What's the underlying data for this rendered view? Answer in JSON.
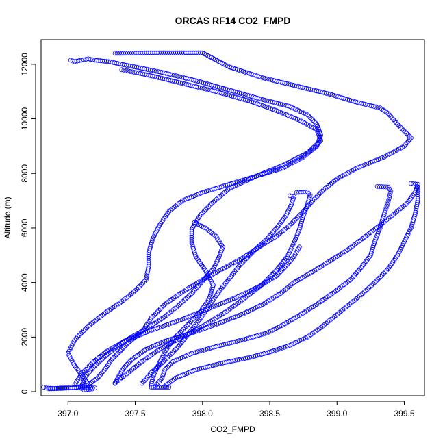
{
  "chart_data": {
    "type": "scatter",
    "title": "ORCAS RF14 CO2_FMPD",
    "xlabel": "CO2_FMPD",
    "ylabel": "Altitude (m)",
    "xlim": [
      396.8,
      399.65
    ],
    "ylim": [
      -150,
      12900
    ],
    "xticks": [
      397.0,
      397.5,
      398.0,
      398.5,
      399.0,
      399.5
    ],
    "xtick_labels": [
      "397.0",
      "397.5",
      "398.0",
      "398.5",
      "399.0",
      "399.5"
    ],
    "yticks": [
      0,
      2000,
      4000,
      6000,
      8000,
      10000,
      12000
    ],
    "ytick_labels": [
      "0",
      "2000",
      "4000",
      "6000",
      "8000",
      "10000",
      "12000"
    ],
    "marker": "open-circle",
    "marker_color": "#0000ff",
    "grid": false,
    "legend": "none",
    "series": [
      {
        "segments": [
          [
            [
              397.35,
              12400
            ],
            [
              397.6,
              12420
            ],
            [
              397.8,
              12420
            ],
            [
              398.0,
              12420
            ],
            [
              398.2,
              11900
            ],
            [
              398.45,
              11500
            ],
            [
              398.7,
              11200
            ],
            [
              398.95,
              10900
            ],
            [
              399.15,
              10600
            ],
            [
              399.32,
              10400
            ],
            [
              399.38,
              10200
            ],
            [
              399.45,
              9800
            ],
            [
              399.55,
              9300
            ],
            [
              399.5,
              9000
            ],
            [
              399.35,
              8600
            ],
            [
              399.15,
              8200
            ],
            [
              399.0,
              7800
            ],
            [
              398.9,
              7400
            ],
            [
              398.82,
              7000
            ],
            [
              398.75,
              6600
            ],
            [
              398.65,
              6100
            ],
            [
              398.55,
              5700
            ],
            [
              398.42,
              5300
            ],
            [
              398.3,
              4900
            ],
            [
              398.15,
              4500
            ],
            [
              398.0,
              4100
            ],
            [
              397.85,
              3650
            ],
            [
              397.72,
              3200
            ],
            [
              397.62,
              2700
            ],
            [
              397.55,
              2200
            ],
            [
              397.45,
              1800
            ],
            [
              397.38,
              1450
            ],
            [
              397.32,
              1150
            ],
            [
              397.28,
              850
            ],
            [
              397.22,
              500
            ],
            [
              397.15,
              250
            ],
            [
              397.05,
              140
            ],
            [
              396.9,
              110
            ],
            [
              396.84,
              130
            ],
            [
              396.82,
              160
            ]
          ],
          [
            [
              397.02,
              12150
            ],
            [
              397.05,
              12100
            ],
            [
              397.1,
              12150
            ],
            [
              397.15,
              12200
            ],
            [
              397.2,
              12150
            ],
            [
              397.3,
              12100
            ],
            [
              397.45,
              11950
            ],
            [
              397.7,
              11700
            ],
            [
              397.95,
              11400
            ],
            [
              398.2,
              11050
            ],
            [
              398.45,
              10700
            ],
            [
              398.65,
              10450
            ],
            [
              398.78,
              10150
            ],
            [
              398.85,
              9800
            ],
            [
              398.88,
              9400
            ],
            [
              398.85,
              9000
            ],
            [
              398.75,
              8600
            ],
            [
              398.6,
              8200
            ],
            [
              398.4,
              7900
            ],
            [
              398.2,
              7600
            ],
            [
              398.0,
              7300
            ],
            [
              397.85,
              7000
            ],
            [
              397.75,
              6600
            ],
            [
              397.68,
              6100
            ],
            [
              397.63,
              5600
            ],
            [
              397.6,
              5100
            ],
            [
              397.6,
              4600
            ],
            [
              397.58,
              4100
            ],
            [
              397.5,
              3700
            ],
            [
              397.4,
              3300
            ],
            [
              397.28,
              2900
            ],
            [
              397.15,
              2400
            ],
            [
              397.05,
              1900
            ],
            [
              397.0,
              1400
            ],
            [
              397.05,
              950
            ],
            [
              397.12,
              500
            ],
            [
              397.15,
              250
            ],
            [
              397.18,
              100
            ],
            [
              397.12,
              60
            ]
          ],
          [
            [
              397.4,
              11800
            ],
            [
              397.6,
              11600
            ],
            [
              397.85,
              11300
            ],
            [
              398.1,
              11000
            ],
            [
              398.35,
              10650
            ],
            [
              398.55,
              10300
            ],
            [
              398.72,
              9950
            ],
            [
              398.85,
              9600
            ],
            [
              398.88,
              9200
            ],
            [
              398.78,
              8750
            ],
            [
              398.6,
              8300
            ],
            [
              398.4,
              7900
            ],
            [
              398.2,
              7450
            ],
            [
              398.08,
              6950
            ],
            [
              397.98,
              6450
            ],
            [
              397.92,
              5950
            ],
            [
              397.92,
              5450
            ],
            [
              397.95,
              4950
            ],
            [
              398.02,
              4450
            ],
            [
              398.08,
              3900
            ],
            [
              398.05,
              3400
            ],
            [
              397.98,
              2900
            ],
            [
              397.88,
              2400
            ],
            [
              397.78,
              1900
            ],
            [
              397.72,
              1450
            ],
            [
              397.68,
              1050
            ],
            [
              397.64,
              650
            ],
            [
              397.62,
              300
            ],
            [
              397.62,
              160
            ],
            [
              397.75,
              160
            ]
          ],
          [
            [
              397.35,
              300
            ],
            [
              397.38,
              600
            ],
            [
              397.42,
              900
            ],
            [
              397.48,
              1200
            ],
            [
              397.58,
              1550
            ],
            [
              397.72,
              1850
            ],
            [
              397.92,
              2150
            ],
            [
              398.12,
              2500
            ],
            [
              398.3,
              2850
            ],
            [
              398.45,
              3200
            ],
            [
              398.58,
              3600
            ],
            [
              398.68,
              4000
            ],
            [
              398.82,
              4400
            ],
            [
              398.95,
              4800
            ],
            [
              399.08,
              5200
            ],
            [
              399.2,
              5650
            ],
            [
              399.32,
              6100
            ],
            [
              399.42,
              6500
            ],
            [
              399.52,
              6900
            ],
            [
              399.58,
              7300
            ],
            [
              399.6,
              7600
            ],
            [
              399.55,
              7630
            ]
          ],
          [
            [
              397.65,
              200
            ],
            [
              397.7,
              500
            ],
            [
              397.72,
              800
            ],
            [
              397.78,
              1100
            ],
            [
              397.92,
              1400
            ],
            [
              398.1,
              1650
            ],
            [
              398.3,
              1900
            ],
            [
              398.48,
              2150
            ],
            [
              398.6,
              2450
            ],
            [
              398.72,
              2800
            ],
            [
              398.85,
              3200
            ],
            [
              398.98,
              3650
            ],
            [
              399.1,
              4100
            ],
            [
              399.18,
              4550
            ],
            [
              399.25,
              5000
            ],
            [
              399.28,
              5500
            ],
            [
              399.32,
              6000
            ],
            [
              399.35,
              6500
            ],
            [
              399.38,
              6950
            ],
            [
              399.4,
              7350
            ],
            [
              399.38,
              7500
            ],
            [
              399.3,
              7520
            ]
          ],
          [
            [
              397.72,
              200
            ],
            [
              397.8,
              500
            ],
            [
              397.95,
              800
            ],
            [
              398.15,
              1050
            ],
            [
              398.35,
              1250
            ],
            [
              398.5,
              1450
            ],
            [
              398.65,
              1700
            ],
            [
              398.78,
              2000
            ],
            [
              398.88,
              2350
            ],
            [
              398.98,
              2750
            ],
            [
              399.08,
              3150
            ],
            [
              399.18,
              3550
            ],
            [
              399.28,
              4000
            ],
            [
              399.38,
              4500
            ],
            [
              399.45,
              5000
            ],
            [
              399.5,
              5500
            ],
            [
              399.55,
              6000
            ],
            [
              399.58,
              6500
            ],
            [
              399.6,
              7000
            ],
            [
              399.6,
              7500
            ]
          ],
          [
            [
              397.35,
              320
            ],
            [
              397.45,
              700
            ],
            [
              397.55,
              1100
            ],
            [
              397.68,
              1550
            ],
            [
              397.85,
              2000
            ],
            [
              398.02,
              2450
            ],
            [
              398.18,
              2950
            ],
            [
              398.32,
              3450
            ],
            [
              398.45,
              3950
            ],
            [
              398.55,
              4450
            ],
            [
              398.63,
              4950
            ],
            [
              398.68,
              5450
            ],
            [
              398.72,
              5950
            ],
            [
              398.75,
              6450
            ],
            [
              398.78,
              6850
            ],
            [
              398.8,
              7200
            ],
            [
              398.78,
              7320
            ],
            [
              398.7,
              7300
            ]
          ],
          [
            [
              397.55,
              300
            ],
            [
              397.62,
              700
            ],
            [
              397.72,
              1150
            ],
            [
              397.82,
              1650
            ],
            [
              397.9,
              2150
            ],
            [
              397.98,
              2650
            ],
            [
              398.05,
              3150
            ],
            [
              398.12,
              3650
            ],
            [
              398.2,
              4150
            ],
            [
              398.28,
              4650
            ],
            [
              398.38,
              5150
            ],
            [
              398.48,
              5600
            ],
            [
              398.56,
              6050
            ],
            [
              398.62,
              6450
            ],
            [
              398.66,
              6850
            ],
            [
              398.68,
              7150
            ],
            [
              398.65,
              7180
            ]
          ],
          [
            [
              397.1,
              120
            ],
            [
              397.12,
              500
            ],
            [
              397.2,
              950
            ],
            [
              397.3,
              1400
            ],
            [
              397.42,
              1850
            ],
            [
              397.58,
              2300
            ],
            [
              397.72,
              2750
            ],
            [
              397.82,
              3150
            ],
            [
              397.92,
              3600
            ],
            [
              398.0,
              4050
            ],
            [
              398.08,
              4500
            ],
            [
              398.12,
              4900
            ],
            [
              398.15,
              5300
            ],
            [
              398.1,
              5700
            ],
            [
              398.02,
              6000
            ],
            [
              397.94,
              6200
            ]
          ],
          [
            [
              397.05,
              250
            ],
            [
              397.1,
              650
            ],
            [
              397.18,
              1050
            ],
            [
              397.28,
              1450
            ],
            [
              397.42,
              1850
            ],
            [
              397.62,
              2250
            ],
            [
              397.85,
              2650
            ],
            [
              398.05,
              3050
            ],
            [
              398.25,
              3450
            ],
            [
              398.42,
              3850
            ],
            [
              398.55,
              4250
            ],
            [
              398.62,
              4600
            ],
            [
              398.68,
              4950
            ],
            [
              398.72,
              5300
            ]
          ],
          [
            [
              396.86,
              100
            ],
            [
              396.95,
              130
            ],
            [
              397.05,
              140
            ],
            [
              397.15,
              140
            ],
            [
              397.2,
              135
            ]
          ]
        ]
      }
    ]
  }
}
